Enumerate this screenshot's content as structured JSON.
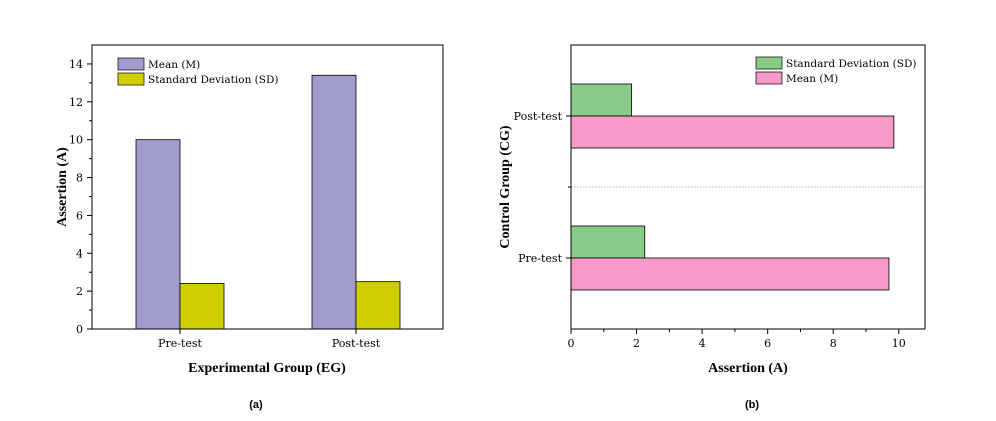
{
  "chart_data": [
    {
      "type": "bar",
      "orientation": "vertical",
      "panel_label": "(a)",
      "xlabel": "Experimental Group (EG)",
      "ylabel": "Assertion (A)",
      "categories": [
        "Pre-test",
        "Post-test"
      ],
      "ylim": [
        0,
        15
      ],
      "yticks": [
        "0",
        "2",
        "4",
        "6",
        "8",
        "10",
        "12",
        "14"
      ],
      "series": [
        {
          "name": "Mean (M)",
          "values": [
            10.0,
            13.4
          ],
          "color": "#a09ccb"
        },
        {
          "name": "Standard Deviation (SD)",
          "values": [
            2.4,
            2.5
          ],
          "color": "#cfcf00"
        }
      ],
      "legend": "top-left",
      "grid": false
    },
    {
      "type": "bar",
      "orientation": "horizontal",
      "panel_label": "(b)",
      "xlabel": "Assertion (A)",
      "ylabel": "Control Group (CG)",
      "categories": [
        "Pre-test",
        "Post-test"
      ],
      "xlim": [
        0,
        10.8
      ],
      "xticks": [
        "0",
        "2",
        "4",
        "6",
        "8",
        "10"
      ],
      "series": [
        {
          "name": "Standard Deviation (SD)",
          "values": [
            2.25,
            1.85
          ],
          "color": "#88cc88"
        },
        {
          "name": "Mean (M)",
          "values": [
            9.7,
            9.85
          ],
          "color": "#f799c9"
        }
      ],
      "legend": "top-right",
      "grid": false
    }
  ]
}
